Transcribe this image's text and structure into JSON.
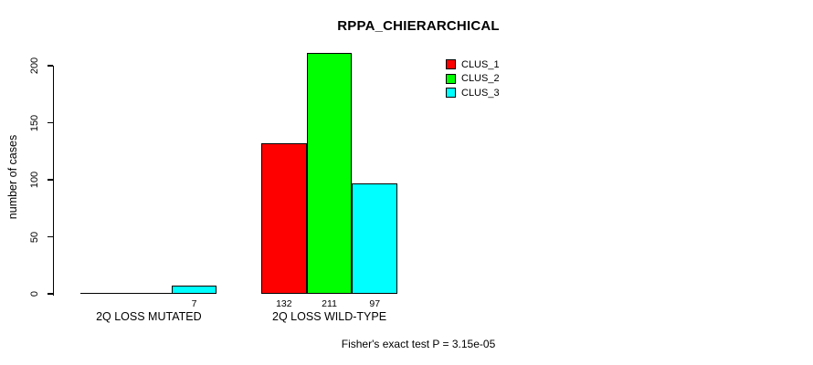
{
  "title": "RPPA_CHIERARCHICAL",
  "footer": "Fisher's exact test P = 3.15e-05",
  "y_axis": {
    "label": "number of cases",
    "ticks": [
      "0",
      "50",
      "100",
      "150",
      "200"
    ]
  },
  "colors": {
    "clus_1": "#ff0000",
    "clus_2": "#00ff00",
    "clus_3": "#00ffff",
    "axis": "#000000",
    "background": "#ffffff"
  },
  "chart_data": {
    "type": "bar",
    "title": "RPPA_CHIERARCHICAL",
    "xlabel": "",
    "ylabel": "number of cases",
    "ylim": [
      0,
      211
    ],
    "yticks": [
      0,
      50,
      100,
      150,
      200
    ],
    "grid": false,
    "legend_position": "top-right",
    "categories": [
      "2Q LOSS MUTATED",
      "2Q LOSS WILD-TYPE"
    ],
    "series": [
      {
        "name": "CLUS_1",
        "color": "#ff0000",
        "values": [
          0,
          132
        ]
      },
      {
        "name": "CLUS_2",
        "color": "#00ff00",
        "values": [
          0,
          211
        ]
      },
      {
        "name": "CLUS_3",
        "color": "#00ffff",
        "values": [
          7,
          97
        ]
      }
    ],
    "bar_value_labels": [
      [
        "",
        "",
        "7"
      ],
      [
        "132",
        "211",
        "97"
      ]
    ],
    "annotation": "Fisher's exact test P = 3.15e-05"
  }
}
